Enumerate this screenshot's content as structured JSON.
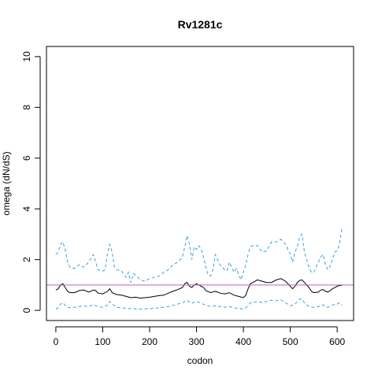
{
  "chart_data": {
    "type": "line",
    "title": "Rv1281c",
    "xlabel": "codon",
    "ylabel": "omega (dN/dS)",
    "xlim": [
      -20,
      635
    ],
    "ylim": [
      -0.4,
      10.4
    ],
    "xticks": [
      0,
      100,
      200,
      300,
      400,
      500,
      600
    ],
    "yticks": [
      0,
      2,
      4,
      6,
      8,
      10
    ],
    "grid": false,
    "legend": "none",
    "reference_line": {
      "y": 1,
      "color": "#c060c0"
    },
    "series": [
      {
        "style": "dashed",
        "color": "#3aa0e0",
        "points": [
          [
            0,
            2.2
          ],
          [
            5,
            2.3
          ],
          [
            10,
            2.6
          ],
          [
            15,
            2.7
          ],
          [
            20,
            2.4
          ],
          [
            25,
            1.9
          ],
          [
            30,
            1.7
          ],
          [
            40,
            1.65
          ],
          [
            50,
            1.8
          ],
          [
            60,
            1.7
          ],
          [
            70,
            1.9
          ],
          [
            80,
            2.2
          ],
          [
            85,
            1.9
          ],
          [
            90,
            1.6
          ],
          [
            100,
            1.55
          ],
          [
            105,
            1.6
          ],
          [
            110,
            2.2
          ],
          [
            115,
            2.6
          ],
          [
            120,
            2.3
          ],
          [
            125,
            1.7
          ],
          [
            130,
            1.6
          ],
          [
            140,
            1.55
          ],
          [
            150,
            1.3
          ],
          [
            155,
            1.5
          ],
          [
            160,
            1.1
          ],
          [
            165,
            1.45
          ],
          [
            170,
            1.4
          ],
          [
            180,
            1.2
          ],
          [
            190,
            1.15
          ],
          [
            200,
            1.25
          ],
          [
            210,
            1.3
          ],
          [
            220,
            1.35
          ],
          [
            230,
            1.5
          ],
          [
            240,
            1.6
          ],
          [
            250,
            1.8
          ],
          [
            260,
            1.9
          ],
          [
            270,
            2.1
          ],
          [
            275,
            2.5
          ],
          [
            280,
            2.95
          ],
          [
            285,
            2.6
          ],
          [
            290,
            2.0
          ],
          [
            295,
            2.5
          ],
          [
            300,
            2.4
          ],
          [
            305,
            2.55
          ],
          [
            310,
            2.4
          ],
          [
            315,
            2.1
          ],
          [
            320,
            1.7
          ],
          [
            325,
            1.4
          ],
          [
            330,
            1.35
          ],
          [
            335,
            1.6
          ],
          [
            340,
            2.2
          ],
          [
            345,
            2.0
          ],
          [
            350,
            1.8
          ],
          [
            355,
            1.7
          ],
          [
            360,
            1.6
          ],
          [
            365,
            1.55
          ],
          [
            370,
            1.9
          ],
          [
            375,
            1.7
          ],
          [
            380,
            1.5
          ],
          [
            385,
            1.65
          ],
          [
            390,
            1.4
          ],
          [
            395,
            1.2
          ],
          [
            400,
            1.5
          ],
          [
            405,
            1.8
          ],
          [
            410,
            2.2
          ],
          [
            415,
            2.5
          ],
          [
            420,
            2.55
          ],
          [
            430,
            2.55
          ],
          [
            440,
            2.3
          ],
          [
            450,
            2.35
          ],
          [
            460,
            2.7
          ],
          [
            470,
            2.7
          ],
          [
            480,
            2.8
          ],
          [
            490,
            2.6
          ],
          [
            500,
            2.2
          ],
          [
            505,
            1.9
          ],
          [
            510,
            2.3
          ],
          [
            515,
            2.5
          ],
          [
            520,
            2.9
          ],
          [
            525,
            3.0
          ],
          [
            530,
            2.3
          ],
          [
            535,
            2.0
          ],
          [
            540,
            1.7
          ],
          [
            545,
            1.5
          ],
          [
            550,
            1.5
          ],
          [
            555,
            1.7
          ],
          [
            560,
            1.9
          ],
          [
            565,
            2.1
          ],
          [
            570,
            2.2
          ],
          [
            575,
            1.8
          ],
          [
            580,
            1.6
          ],
          [
            585,
            1.75
          ],
          [
            590,
            2.0
          ],
          [
            595,
            2.3
          ],
          [
            600,
            2.35
          ],
          [
            605,
            2.6
          ],
          [
            610,
            3.2
          ]
        ]
      },
      {
        "style": "solid",
        "color": "#000000",
        "points": [
          [
            0,
            0.8
          ],
          [
            5,
            0.85
          ],
          [
            10,
            1.0
          ],
          [
            15,
            1.05
          ],
          [
            20,
            0.9
          ],
          [
            25,
            0.75
          ],
          [
            30,
            0.7
          ],
          [
            40,
            0.7
          ],
          [
            50,
            0.78
          ],
          [
            60,
            0.8
          ],
          [
            70,
            0.72
          ],
          [
            80,
            0.8
          ],
          [
            85,
            0.78
          ],
          [
            90,
            0.68
          ],
          [
            100,
            0.65
          ],
          [
            110,
            0.75
          ],
          [
            115,
            0.85
          ],
          [
            120,
            0.7
          ],
          [
            130,
            0.62
          ],
          [
            140,
            0.6
          ],
          [
            150,
            0.55
          ],
          [
            160,
            0.5
          ],
          [
            170,
            0.52
          ],
          [
            180,
            0.48
          ],
          [
            190,
            0.5
          ],
          [
            200,
            0.52
          ],
          [
            210,
            0.55
          ],
          [
            220,
            0.58
          ],
          [
            230,
            0.6
          ],
          [
            240,
            0.68
          ],
          [
            250,
            0.75
          ],
          [
            260,
            0.82
          ],
          [
            270,
            0.9
          ],
          [
            275,
            1.05
          ],
          [
            280,
            1.1
          ],
          [
            285,
            0.95
          ],
          [
            290,
            0.9
          ],
          [
            295,
            1.0
          ],
          [
            300,
            1.05
          ],
          [
            305,
            1.0
          ],
          [
            310,
            0.95
          ],
          [
            315,
            0.9
          ],
          [
            320,
            0.78
          ],
          [
            330,
            0.7
          ],
          [
            340,
            0.75
          ],
          [
            345,
            0.72
          ],
          [
            350,
            0.68
          ],
          [
            360,
            0.65
          ],
          [
            370,
            0.7
          ],
          [
            380,
            0.6
          ],
          [
            390,
            0.55
          ],
          [
            400,
            0.5
          ],
          [
            405,
            0.6
          ],
          [
            410,
            0.85
          ],
          [
            415,
            1.05
          ],
          [
            420,
            1.1
          ],
          [
            430,
            1.2
          ],
          [
            440,
            1.15
          ],
          [
            450,
            1.1
          ],
          [
            460,
            1.1
          ],
          [
            470,
            1.2
          ],
          [
            480,
            1.25
          ],
          [
            490,
            1.15
          ],
          [
            500,
            0.95
          ],
          [
            505,
            0.85
          ],
          [
            510,
            0.95
          ],
          [
            515,
            1.1
          ],
          [
            520,
            1.18
          ],
          [
            525,
            1.2
          ],
          [
            530,
            1.1
          ],
          [
            540,
            0.9
          ],
          [
            545,
            0.75
          ],
          [
            550,
            0.7
          ],
          [
            560,
            0.72
          ],
          [
            565,
            0.8
          ],
          [
            570,
            0.82
          ],
          [
            575,
            0.75
          ],
          [
            580,
            0.72
          ],
          [
            585,
            0.78
          ],
          [
            590,
            0.85
          ],
          [
            595,
            0.9
          ],
          [
            600,
            0.95
          ],
          [
            605,
            0.98
          ],
          [
            610,
            0.98
          ]
        ]
      },
      {
        "style": "dashed",
        "color": "#3aa0e0",
        "points": [
          [
            0,
            0.05
          ],
          [
            5,
            0.1
          ],
          [
            10,
            0.25
          ],
          [
            15,
            0.3
          ],
          [
            20,
            0.2
          ],
          [
            25,
            0.12
          ],
          [
            30,
            0.1
          ],
          [
            40,
            0.12
          ],
          [
            50,
            0.15
          ],
          [
            60,
            0.18
          ],
          [
            70,
            0.15
          ],
          [
            80,
            0.22
          ],
          [
            90,
            0.15
          ],
          [
            100,
            0.12
          ],
          [
            110,
            0.2
          ],
          [
            115,
            0.35
          ],
          [
            120,
            0.25
          ],
          [
            130,
            0.12
          ],
          [
            140,
            0.1
          ],
          [
            150,
            0.08
          ],
          [
            160,
            0.07
          ],
          [
            170,
            0.06
          ],
          [
            180,
            0.05
          ],
          [
            190,
            0.06
          ],
          [
            200,
            0.07
          ],
          [
            210,
            0.08
          ],
          [
            220,
            0.1
          ],
          [
            230,
            0.12
          ],
          [
            240,
            0.15
          ],
          [
            250,
            0.2
          ],
          [
            260,
            0.25
          ],
          [
            270,
            0.3
          ],
          [
            275,
            0.35
          ],
          [
            280,
            0.4
          ],
          [
            285,
            0.32
          ],
          [
            290,
            0.28
          ],
          [
            300,
            0.35
          ],
          [
            305,
            0.32
          ],
          [
            310,
            0.28
          ],
          [
            320,
            0.2
          ],
          [
            330,
            0.15
          ],
          [
            340,
            0.18
          ],
          [
            350,
            0.15
          ],
          [
            360,
            0.12
          ],
          [
            370,
            0.15
          ],
          [
            380,
            0.1
          ],
          [
            390,
            0.07
          ],
          [
            400,
            0.06
          ],
          [
            405,
            0.1
          ],
          [
            410,
            0.2
          ],
          [
            415,
            0.3
          ],
          [
            420,
            0.3
          ],
          [
            430,
            0.35
          ],
          [
            440,
            0.3
          ],
          [
            450,
            0.35
          ],
          [
            460,
            0.4
          ],
          [
            470,
            0.38
          ],
          [
            480,
            0.42
          ],
          [
            490,
            0.3
          ],
          [
            500,
            0.18
          ],
          [
            510,
            0.25
          ],
          [
            515,
            0.35
          ],
          [
            520,
            0.45
          ],
          [
            525,
            0.45
          ],
          [
            530,
            0.3
          ],
          [
            540,
            0.15
          ],
          [
            550,
            0.12
          ],
          [
            560,
            0.15
          ],
          [
            565,
            0.2
          ],
          [
            570,
            0.22
          ],
          [
            575,
            0.15
          ],
          [
            580,
            0.12
          ],
          [
            585,
            0.15
          ],
          [
            590,
            0.2
          ],
          [
            595,
            0.25
          ],
          [
            600,
            0.25
          ],
          [
            605,
            0.3
          ],
          [
            610,
            0.2
          ]
        ]
      }
    ]
  }
}
